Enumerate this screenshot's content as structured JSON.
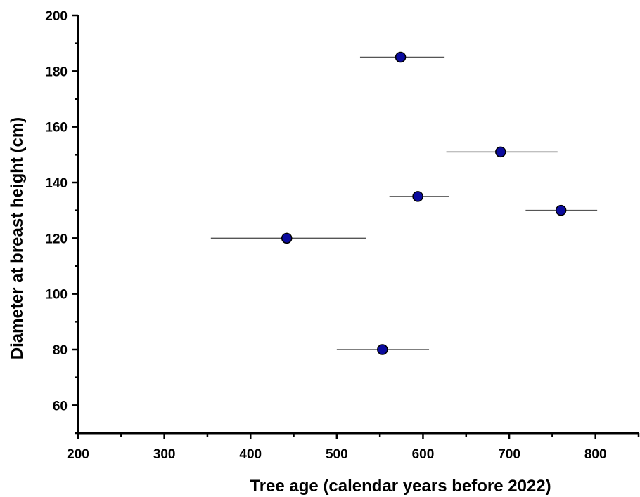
{
  "chart_data": {
    "type": "scatter",
    "title": "",
    "xlabel": "Tree age (calendar years before 2022)",
    "ylabel": "Diameter at breast height (cm)",
    "xlim": [
      200,
      850
    ],
    "ylim": [
      50,
      200
    ],
    "xticks": [
      200,
      300,
      400,
      500,
      600,
      700,
      800
    ],
    "yticks": [
      60,
      80,
      100,
      120,
      140,
      160,
      180,
      200
    ],
    "grid": false,
    "legend": "none",
    "marker_color": "#0b0b9e",
    "errorbar_color": "#555555",
    "points": [
      {
        "x": 574,
        "y": 185,
        "xerr_low": 527,
        "xerr_high": 625
      },
      {
        "x": 690,
        "y": 151,
        "xerr_low": 627,
        "xerr_high": 756
      },
      {
        "x": 594,
        "y": 135,
        "xerr_low": 561,
        "xerr_high": 630
      },
      {
        "x": 760,
        "y": 130,
        "xerr_low": 719,
        "xerr_high": 802
      },
      {
        "x": 442,
        "y": 120,
        "xerr_low": 354,
        "xerr_high": 534
      },
      {
        "x": 553,
        "y": 80,
        "xerr_low": 500,
        "xerr_high": 607
      }
    ]
  }
}
